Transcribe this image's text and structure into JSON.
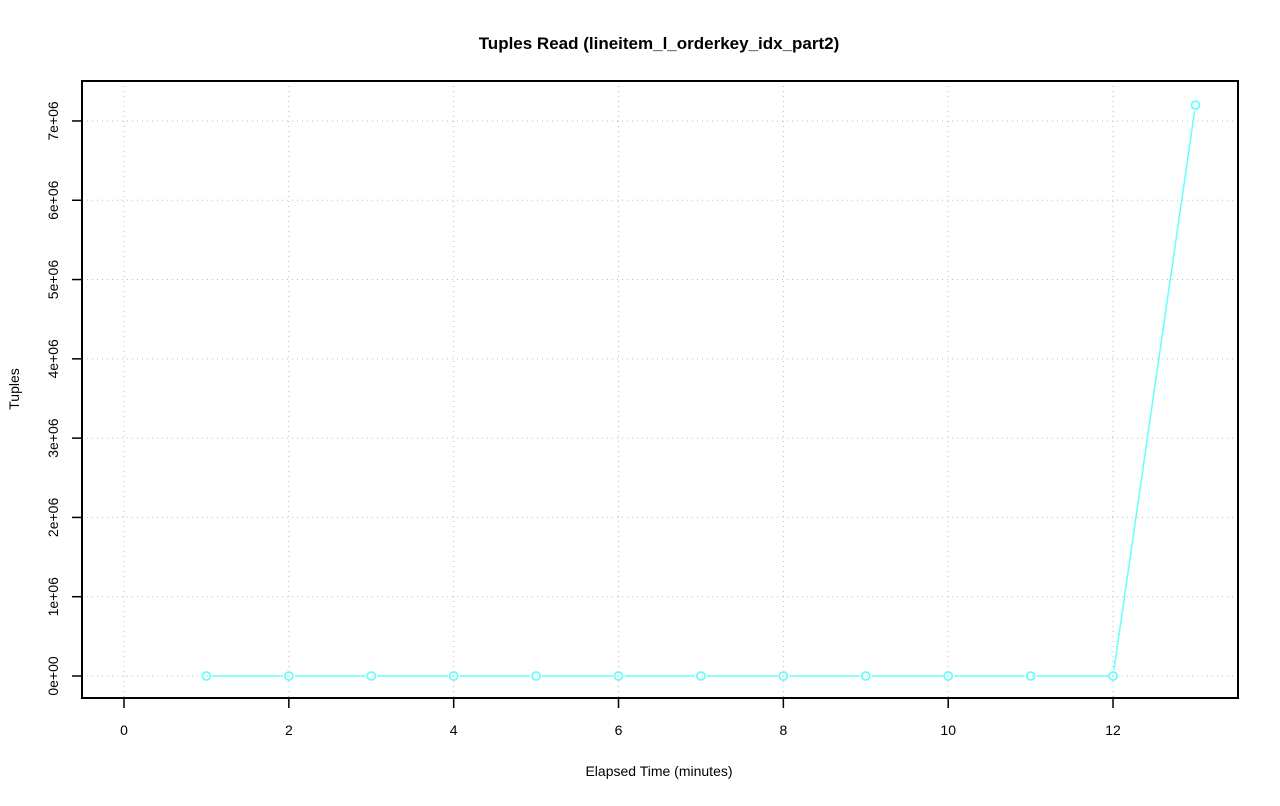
{
  "chart_data": {
    "type": "line",
    "title": "Tuples Read (lineitem_l_orderkey_idx_part2)",
    "xlabel": "Elapsed Time (minutes)",
    "ylabel": "Tuples",
    "x": [
      1,
      2,
      3,
      4,
      5,
      6,
      7,
      8,
      9,
      10,
      11,
      12,
      13
    ],
    "series": [
      {
        "values": [
          0,
          0,
          0,
          0,
          0,
          0,
          0,
          0,
          0,
          0,
          0,
          0,
          7200000
        ],
        "color": "#66ffff"
      }
    ],
    "xticks": [
      0,
      2,
      4,
      6,
      8,
      10,
      12
    ],
    "xtick_labels": [
      "0",
      "2",
      "4",
      "6",
      "8",
      "10",
      "12"
    ],
    "yticks": [
      0,
      1000000,
      2000000,
      3000000,
      4000000,
      5000000,
      6000000,
      7000000
    ],
    "ytick_labels": [
      "0e+00",
      "1e+06",
      "2e+06",
      "3e+06",
      "4e+06",
      "5e+06",
      "6e+06",
      "7e+06"
    ],
    "xlim": [
      -0.5,
      13.5
    ],
    "ylim": [
      -280000,
      7500000
    ],
    "grid": true,
    "markers": "open-circle"
  }
}
